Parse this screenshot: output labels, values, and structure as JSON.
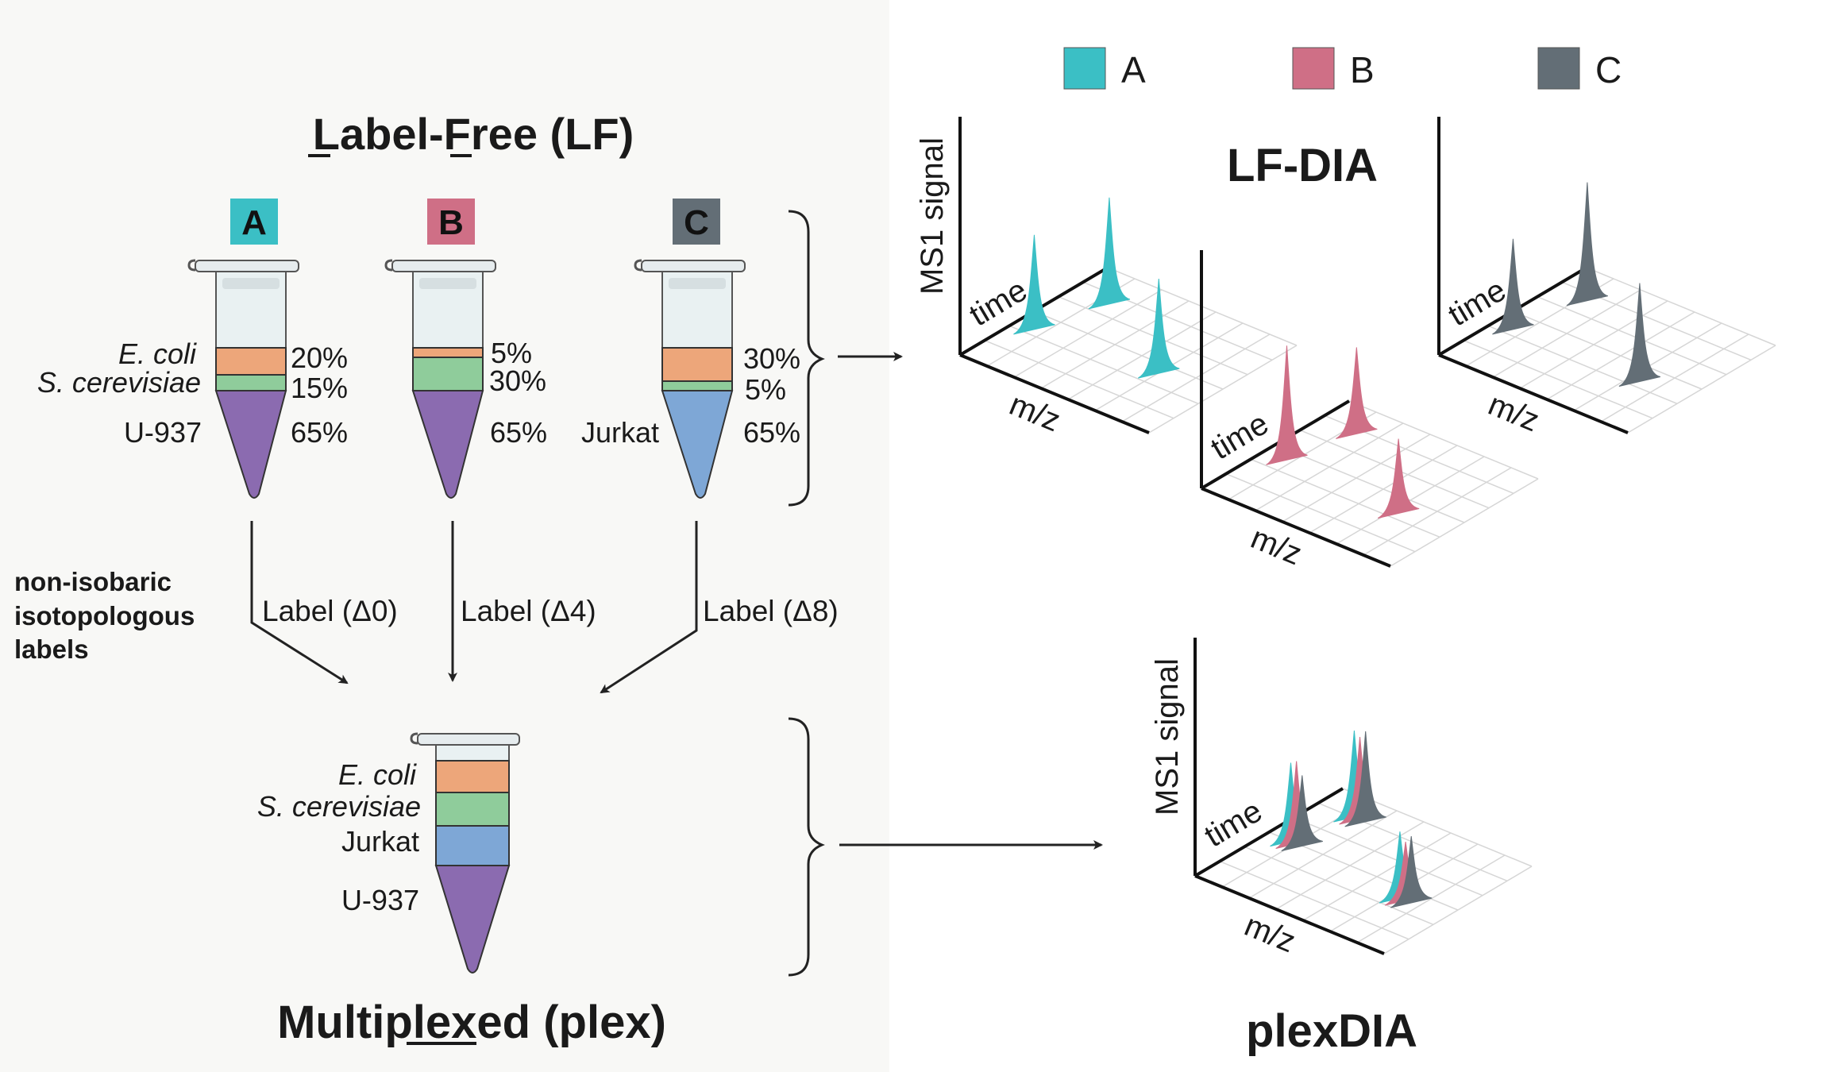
{
  "colors": {
    "A": "#3bbfc5",
    "B": "#cf6f86",
    "C": "#636e76",
    "ecoli": "#eda67a",
    "yeast": "#8fcc9b",
    "u937": "#8b6bb0",
    "jurkat": "#7ea7d6"
  },
  "titles": {
    "lf_pre": "",
    "lf": "Label-Free (LF)",
    "plex": "Multiplexed (plex)",
    "lfdia": "LF-DIA",
    "plexdia": "plexDIA"
  },
  "legend": [
    {
      "key": "A",
      "label": "A"
    },
    {
      "key": "B",
      "label": "B"
    },
    {
      "key": "C",
      "label": "C"
    }
  ],
  "samples": {
    "A": {
      "badge": "A",
      "ecoli_label": "E. coli",
      "yeast_label": "S. cerevisiae",
      "human_label": "U-937",
      "ecoli_pct": "20%",
      "yeast_pct": "15%",
      "human_pct": "65%"
    },
    "B": {
      "badge": "B",
      "ecoli_pct": "5%",
      "yeast_pct": "30%",
      "human_pct": "65%"
    },
    "C": {
      "badge": "C",
      "human_label": "Jurkat",
      "ecoli_pct": "30%",
      "yeast_pct": "5%",
      "human_pct": "65%"
    }
  },
  "labels": {
    "side": [
      "non-isobaric",
      "isotopologous",
      "labels"
    ],
    "A": "Label (Δ0)",
    "B": "Label (Δ4)",
    "C": "Label (Δ8)"
  },
  "plex_tube": {
    "ecoli": "E. coli",
    "yeast": "S. cerevisiae",
    "jurkat": "Jurkat",
    "u937": "U-937"
  },
  "axes": {
    "signal": "MS1 signal",
    "time": "time",
    "mz": "m/z"
  }
}
